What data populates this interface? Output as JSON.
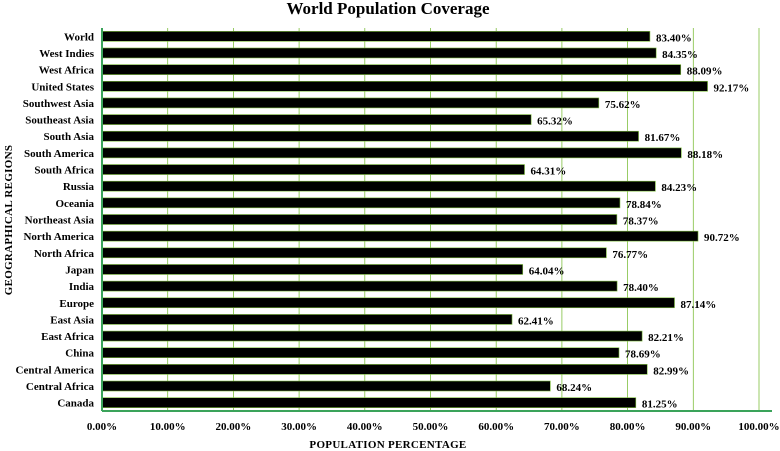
{
  "chart_data": {
    "type": "bar",
    "orientation": "horizontal",
    "title": "World Population Coverage",
    "xlabel": "POPULATION PERCENTAGE",
    "ylabel": "GEOGRAPHICAL REGIONS",
    "xlim": [
      0,
      100
    ],
    "xticks": [
      "0.00%",
      "10.00%",
      "20.00%",
      "30.00%",
      "40.00%",
      "50.00%",
      "60.00%",
      "70.00%",
      "80.00%",
      "90.00%",
      "100.00%"
    ],
    "grid": "vertical",
    "categories": [
      "World",
      "West Indies",
      "West Africa",
      "United States",
      "Southwest Asia",
      "Southeast Asia",
      "South Asia",
      "South America",
      "South Africa",
      "Russia",
      "Oceania",
      "Northeast Asia",
      "North America",
      "North Africa",
      "Japan",
      "India",
      "Europe",
      "East Asia",
      "East Africa",
      "China",
      "Central America",
      "Central Africa",
      "Canada"
    ],
    "values": [
      83.4,
      84.35,
      88.09,
      92.17,
      75.62,
      65.32,
      81.67,
      88.18,
      64.31,
      84.23,
      78.84,
      78.37,
      90.72,
      76.77,
      64.04,
      78.4,
      87.14,
      62.41,
      82.21,
      78.69,
      82.99,
      68.24,
      81.25
    ],
    "value_labels": [
      "83.40%",
      "84.35%",
      "88.09%",
      "92.17%",
      "75.62%",
      "65.32%",
      "81.67%",
      "88.18%",
      "64.31%",
      "84.23%",
      "78.84%",
      "78.37%",
      "90.72%",
      "76.77%",
      "64.04%",
      "78.40%",
      "87.14%",
      "62.41%",
      "82.21%",
      "78.69%",
      "82.99%",
      "68.24%",
      "81.25%"
    ],
    "colors": {
      "bar": "#000000",
      "bar_outline": "#7fbf3f",
      "axis": "#3aa35a",
      "grid": "#7fbf3f"
    }
  }
}
